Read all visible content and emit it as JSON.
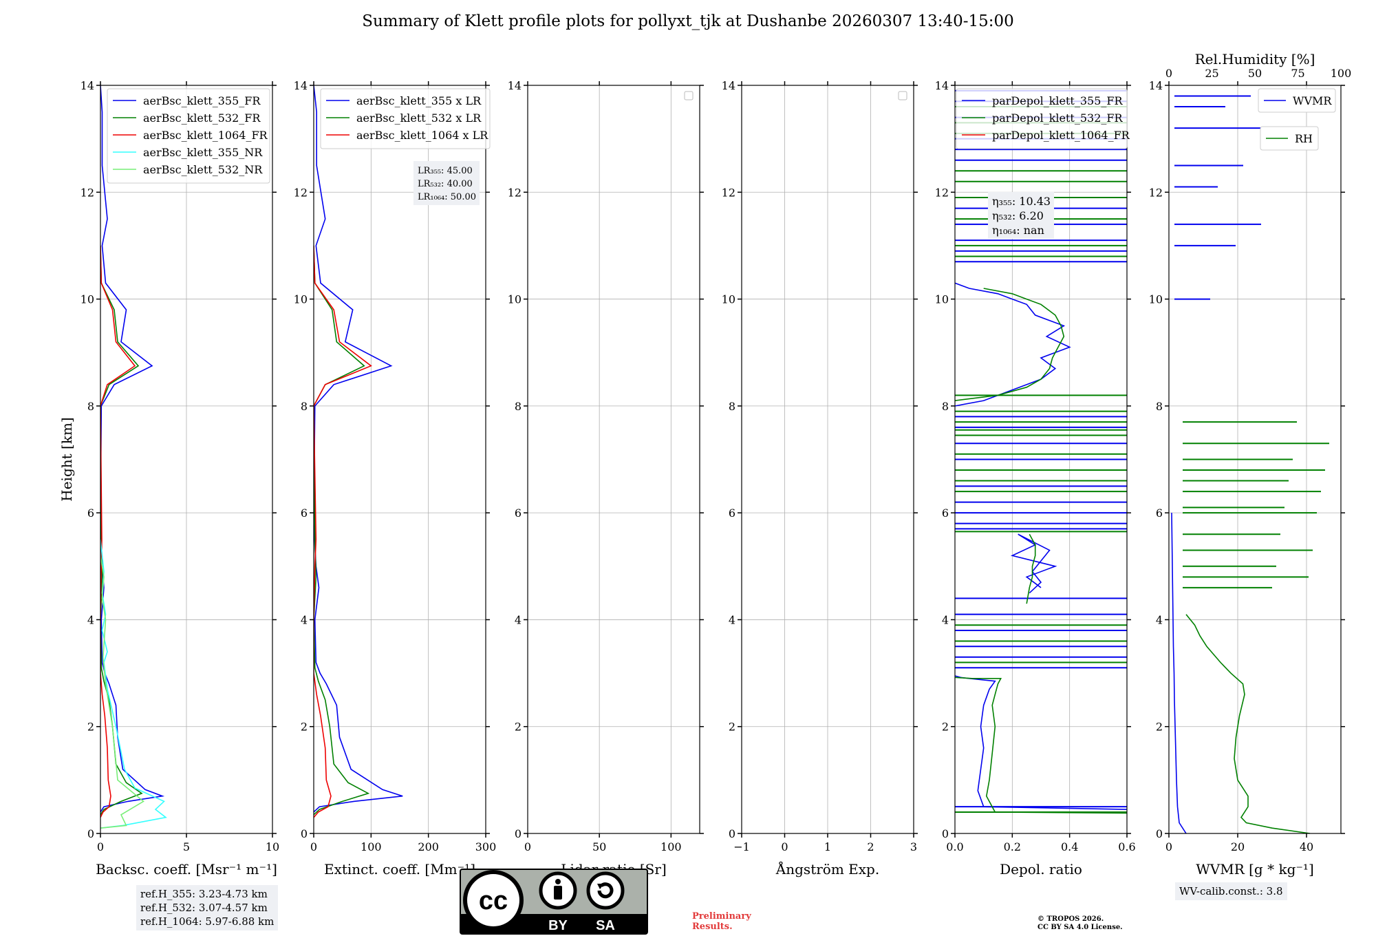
{
  "figure_title": "Summary of Klett profile plots for pollyxt_tjk at Dushanbe 20260307 13:40-15:00",
  "height_label": "Height [km]",
  "colors": {
    "b355": "#0000ee",
    "b532": "#008000",
    "b1064": "#ee0000",
    "c355": "#33ffff",
    "c532": "#77ee77"
  },
  "chart_data": [
    {
      "id": "bsc",
      "type": "line",
      "xlabel": "Backsc. coeff. [Msr$^{-1}$ m$^{-1}$]",
      "xlabel_text": "Backsc. coeff. [Msr⁻¹ m⁻¹]",
      "xlim": [
        0,
        10
      ],
      "ylim": [
        0,
        14
      ],
      "xticks": [
        0,
        5,
        10
      ],
      "xtick_labels": [
        "0",
        "5",
        "10"
      ],
      "yticks": [
        0,
        2,
        4,
        6,
        8,
        10,
        12,
        14
      ],
      "ytick_labels": [
        "0",
        "2",
        "4",
        "6",
        "8",
        "10",
        "12",
        "14"
      ],
      "legend": [
        "aerBsc_klett_355_FR",
        "aerBsc_klett_532_FR",
        "aerBsc_klett_1064_FR",
        "aerBsc_klett_355_NR",
        "aerBsc_klett_532_NR"
      ],
      "series": [
        {
          "name": "aerBsc_klett_355_FR",
          "color": "b355",
          "x": [
            0,
            0.2,
            1.6,
            3.6,
            2.6,
            1.3,
            1.0,
            0.9,
            0.5,
            0.25,
            0.1,
            0.05,
            0.2,
            0.1,
            0,
            0.05,
            0.8,
            3.0,
            1.2,
            1.5,
            0.3,
            0.1,
            0.4,
            0.1,
            0.1,
            0
          ],
          "y": [
            0.4,
            0.5,
            0.6,
            0.7,
            0.82,
            1.2,
            1.8,
            2.4,
            2.8,
            3.0,
            3.2,
            4.0,
            4.6,
            5.0,
            5.8,
            8.0,
            8.4,
            8.75,
            9.2,
            9.8,
            10.3,
            11.0,
            11.5,
            12.5,
            13.5,
            14
          ]
        },
        {
          "name": "aerBsc_klett_532_FR",
          "color": "b532",
          "x": [
            0,
            0.2,
            1.2,
            2.4,
            1.5,
            0.9,
            0.7,
            0.5,
            0.2,
            0.05,
            0,
            0.1,
            0.05,
            0,
            0.5,
            2.2,
            1.0,
            0.8,
            0.05,
            0
          ],
          "y": [
            0.35,
            0.45,
            0.6,
            0.75,
            0.95,
            1.3,
            2.0,
            2.5,
            2.85,
            3.1,
            4.0,
            4.8,
            5.5,
            8.0,
            8.4,
            8.75,
            9.2,
            9.8,
            10.3,
            11.0
          ]
        },
        {
          "name": "aerBsc_klett_1064_FR",
          "color": "b1064",
          "x": [
            0,
            0.15,
            0.5,
            0.6,
            0.45,
            0.4,
            0.25,
            0.1,
            0,
            0,
            0.05,
            0.08,
            0,
            0.4,
            2.0,
            0.9,
            0.7,
            0.05,
            0
          ],
          "y": [
            0.3,
            0.4,
            0.5,
            0.7,
            1.0,
            1.6,
            2.2,
            2.6,
            3.0,
            4.0,
            5.0,
            5.5,
            8.0,
            8.4,
            8.75,
            9.2,
            9.8,
            10.3,
            11.0
          ]
        },
        {
          "name": "aerBsc_klett_355_NR",
          "color": "c355",
          "x": [
            0,
            1.3,
            3.8,
            3.2,
            3.7,
            2.0,
            1.4,
            0.9,
            0.4,
            0.2,
            0.4,
            0.1,
            0.3,
            0.1,
            0.2,
            0
          ],
          "y": [
            0.1,
            0.15,
            0.3,
            0.45,
            0.6,
            0.85,
            1.2,
            2.0,
            2.7,
            3.2,
            3.4,
            3.8,
            4.1,
            4.5,
            4.9,
            5.5
          ]
        },
        {
          "name": "aerBsc_klett_532_NR",
          "color": "c532",
          "x": [
            0,
            1.5,
            1.2,
            2.5,
            1.0,
            0.7,
            0.3,
            0.15,
            0.3,
            0.1,
            0.2,
            0
          ],
          "y": [
            0.1,
            0.15,
            0.35,
            0.6,
            1.0,
            2.0,
            2.8,
            3.3,
            4.0,
            4.4,
            4.8,
            5.2
          ]
        }
      ],
      "legend_loc": "upper right"
    },
    {
      "id": "ext",
      "type": "line",
      "xlabel": "Extinct. coeff. [Mm$^{-1}$]",
      "xlabel_text": "Extinct. coeff. [Mm⁻¹]",
      "xlim": [
        0,
        300
      ],
      "ylim": [
        0,
        14
      ],
      "xticks": [
        0,
        100,
        200,
        300
      ],
      "xtick_labels": [
        "0",
        "100",
        "200",
        "300"
      ],
      "yticks": [
        0,
        2,
        4,
        6,
        8,
        10,
        12,
        14
      ],
      "ytick_labels": [
        "0",
        "2",
        "4",
        "6",
        "8",
        "10",
        "12",
        "14"
      ],
      "legend": [
        "aerBsc_klett_355 x LR",
        "aerBsc_klett_532 x LR",
        "aerBsc_klett_1064 x LR"
      ],
      "series": [
        {
          "name": "aerBsc_klett_355 x LR",
          "color": "b355",
          "x": [
            0,
            10,
            70,
            155,
            120,
            65,
            45,
            40,
            22,
            11,
            4,
            2,
            9,
            4,
            0,
            2,
            35,
            135,
            55,
            68,
            12,
            4,
            20,
            5,
            5,
            0
          ],
          "y": [
            0.4,
            0.5,
            0.6,
            0.7,
            0.82,
            1.2,
            1.8,
            2.4,
            2.8,
            3.0,
            3.2,
            4.0,
            4.6,
            5.0,
            5.8,
            8.0,
            8.4,
            8.75,
            9.2,
            9.8,
            10.3,
            11.0,
            11.5,
            12.5,
            13.5,
            14
          ]
        },
        {
          "name": "aerBsc_klett_532 x LR",
          "color": "b532",
          "x": [
            0,
            10,
            50,
            95,
            60,
            35,
            28,
            20,
            8,
            2,
            0,
            4,
            2,
            0,
            20,
            88,
            40,
            32,
            2,
            0
          ],
          "y": [
            0.35,
            0.45,
            0.6,
            0.75,
            0.95,
            1.3,
            2.0,
            2.5,
            2.85,
            3.1,
            4.0,
            4.8,
            5.5,
            8.0,
            8.4,
            8.75,
            9.2,
            9.8,
            10.3,
            11.0
          ]
        },
        {
          "name": "aerBsc_klett_1064 x LR",
          "color": "b1064",
          "x": [
            0,
            8,
            25,
            30,
            22,
            20,
            12,
            5,
            0,
            0,
            2,
            4,
            0,
            20,
            100,
            45,
            35,
            2,
            0
          ],
          "y": [
            0.3,
            0.4,
            0.5,
            0.7,
            1.0,
            1.6,
            2.2,
            2.6,
            3.0,
            4.0,
            5.0,
            5.5,
            8.0,
            8.4,
            8.75,
            9.2,
            9.8,
            10.3,
            11.0
          ]
        }
      ],
      "lr_box": {
        "lr355": "LR$_{355}$: 45.00",
        "lr532": "LR$_{532}$: 40.00",
        "lr1064": "LR$_{1064}$: 50.00"
      },
      "lr_box_text": {
        "lr355": "LR₃₅₅: 45.00",
        "lr532": "LR₅₃₂: 40.00",
        "lr1064": "LR₁₀₆₄: 50.00"
      }
    },
    {
      "id": "lr",
      "type": "line",
      "xlabel_text": "Lidar ratio [Sr]",
      "xlim": [
        0,
        120
      ],
      "ylim": [
        0,
        14
      ],
      "xticks": [
        0,
        50,
        100
      ],
      "xtick_labels": [
        "0",
        "50",
        "100"
      ],
      "yticks": [
        0,
        2,
        4,
        6,
        8,
        10,
        12,
        14
      ],
      "ytick_labels": [
        "0",
        "2",
        "4",
        "6",
        "8",
        "10",
        "12",
        "14"
      ],
      "series": []
    },
    {
      "id": "ae",
      "type": "line",
      "xlabel_text": "Ångström Exp.",
      "xlim": [
        -1,
        3
      ],
      "ylim": [
        0,
        14
      ],
      "xticks": [
        -1,
        0,
        1,
        2,
        3
      ],
      "xtick_labels": [
        "−1",
        "0",
        "1",
        "2",
        "3"
      ],
      "yticks": [
        0,
        2,
        4,
        6,
        8,
        10,
        12,
        14
      ],
      "ytick_labels": [
        "0",
        "2",
        "4",
        "6",
        "8",
        "10",
        "12",
        "14"
      ],
      "series": []
    },
    {
      "id": "dep",
      "type": "line",
      "xlabel_text": "Depol. ratio",
      "xlim": [
        0,
        0.6
      ],
      "ylim": [
        0,
        14
      ],
      "xticks": [
        0,
        0.2,
        0.4,
        0.6
      ],
      "xtick_labels": [
        "0.0",
        "0.2",
        "0.4",
        "0.6"
      ],
      "yticks": [
        0,
        2,
        4,
        6,
        8,
        10,
        12,
        14
      ],
      "ytick_labels": [
        "0",
        "2",
        "4",
        "6",
        "8",
        "10",
        "12",
        "14"
      ],
      "legend": [
        "parDepol_klett_355_FR",
        "parDepol_klett_532_FR",
        "parDepol_klett_1064_FR"
      ],
      "series": [
        {
          "name": "parDepol_klett_355_FR",
          "color": "b355",
          "x": [
            0.6,
            0.1,
            0.08,
            0.09,
            0.1,
            0.09,
            0.1,
            0.12,
            0.14,
            0.05,
            0.02,
            0.0
          ],
          "y": [
            0.45,
            0.5,
            0.8,
            1.2,
            1.6,
            2.0,
            2.4,
            2.7,
            2.85,
            2.9,
            2.92,
            2.95
          ]
        },
        {
          "name": "parDepol_klett_532_FR",
          "color": "b532",
          "x": [
            0.6,
            0.14,
            0.11,
            0.12,
            0.13,
            0.14,
            0.13,
            0.14,
            0.15,
            0.16,
            0.06,
            0
          ],
          "y": [
            0.38,
            0.4,
            0.7,
            1.0,
            1.5,
            2.0,
            2.4,
            2.6,
            2.8,
            2.9,
            2.9,
            2.92
          ]
        },
        {
          "name": "parDepol_klett_355_FR_mid",
          "color": "b355",
          "x": [
            0.3,
            0.25,
            0.35,
            0.2,
            0.28,
            0.22,
            0.33,
            0.27,
            0.3,
            0.26
          ],
          "y": [
            4.6,
            4.8,
            5.0,
            5.2,
            5.4,
            5.6,
            5.3,
            4.9,
            4.7,
            4.5
          ]
        },
        {
          "name": "parDepol_klett_532_FR_mid",
          "color": "b532",
          "x": [
            0.25,
            0.26,
            0.27,
            0.27,
            0.28,
            0.28,
            0.27,
            0.26
          ],
          "y": [
            4.3,
            4.6,
            4.8,
            5.0,
            5.2,
            5.4,
            5.5,
            5.6
          ]
        },
        {
          "name": "parDepol_klett_355_FR_cloud",
          "color": "b355",
          "x": [
            0.0,
            0.1,
            0.2,
            0.3,
            0.35,
            0.3,
            0.4,
            0.32,
            0.38,
            0.28,
            0.25,
            0.2,
            0.15,
            0.05,
            0
          ],
          "y": [
            8.0,
            8.1,
            8.3,
            8.5,
            8.7,
            8.9,
            9.1,
            9.3,
            9.5,
            9.7,
            9.9,
            10.0,
            10.1,
            10.2,
            10.3
          ]
        },
        {
          "name": "parDepol_klett_532_FR_cloud",
          "color": "b532",
          "x": [
            0.0,
            0.15,
            0.25,
            0.3,
            0.33,
            0.34,
            0.36,
            0.38,
            0.37,
            0.35,
            0.3,
            0.25,
            0.2,
            0.1
          ],
          "y": [
            8.1,
            8.2,
            8.35,
            8.5,
            8.7,
            8.9,
            9.1,
            9.3,
            9.5,
            9.7,
            9.9,
            10.0,
            10.1,
            10.2
          ]
        }
      ],
      "hlines_355": [
        0.5,
        3.1,
        3.3,
        3.5,
        3.8,
        4.1,
        4.4,
        5.7,
        5.8,
        6.0,
        6.2,
        6.5,
        7.0,
        7.3,
        7.6,
        7.8,
        10.7,
        10.9,
        11.1,
        11.4,
        11.7,
        12.6,
        12.8,
        13.0,
        13.4,
        13.7,
        13.9
      ],
      "hlines_532": [
        0.4,
        3.2,
        3.6,
        3.9,
        5.65,
        6.4,
        6.6,
        6.8,
        7.1,
        7.45,
        7.55,
        7.7,
        7.9,
        8.2,
        10.8,
        11.0,
        11.5,
        11.9,
        12.2,
        12.4,
        13.1,
        13.3,
        13.6
      ],
      "eta_box": {
        "e355": "$\\eta_{355}$: 10.43",
        "e532": "$\\eta_{532}$: 6.20",
        "e1064": "$\\eta_{1064}$: nan"
      },
      "eta_box_text": {
        "e355": "η₃₅₅: 10.43",
        "e532": "η₅₃₂: 6.20",
        "e1064": "η₁₀₆₄: nan"
      }
    },
    {
      "id": "wv",
      "type": "line",
      "xlabel_text": "WVMR [g * kg⁻¹]",
      "xlim": [
        0,
        50
      ],
      "ylim": [
        0,
        14
      ],
      "xticks": [
        0,
        20,
        40
      ],
      "xtick_labels": [
        "0",
        "20",
        "40"
      ],
      "top_xlabel": "Rel.Humidity [%]",
      "top_xlim": [
        0,
        100
      ],
      "top_xticks": [
        0,
        25,
        50,
        75,
        100
      ],
      "top_xtick_labels": [
        "0",
        "25",
        "50",
        "75",
        "100"
      ],
      "yticks": [
        0,
        2,
        4,
        6,
        8,
        10,
        12,
        14
      ],
      "ytick_labels": [
        "0",
        "2",
        "4",
        "6",
        "8",
        "10",
        "12",
        "14"
      ],
      "legend": [
        "WVMR",
        "RH"
      ],
      "series": [
        {
          "name": "WVMR",
          "color": "b355",
          "x": [
            5,
            3,
            2.5,
            2.2,
            2.0,
            1.8,
            1.6,
            1.5,
            1.3,
            1.2,
            1.0,
            0.8
          ],
          "y": [
            0,
            0.2,
            0.5,
            1.0,
            1.5,
            2.0,
            2.5,
            3.0,
            3.5,
            4.0,
            5.0,
            6.0
          ]
        },
        {
          "name": "RH",
          "color": "b532",
          "x": [
            82,
            60,
            45,
            42,
            46,
            46,
            40,
            38,
            39,
            41,
            44,
            43,
            36,
            30,
            22,
            18,
            15,
            10
          ],
          "y": [
            0,
            0.1,
            0.2,
            0.3,
            0.5,
            0.7,
            1.0,
            1.4,
            1.8,
            2.2,
            2.6,
            2.8,
            3.0,
            3.2,
            3.5,
            3.7,
            3.9,
            4.1
          ]
        }
      ],
      "hlines_wvmr": [
        10.0,
        11.0,
        11.4,
        12.1,
        12.5,
        13.2,
        13.6,
        13.8
      ],
      "hlines_rh": [
        4.6,
        4.8,
        5.0,
        5.3,
        5.6,
        6.0,
        6.1,
        6.4,
        6.6,
        6.8,
        7.0,
        7.3,
        7.7
      ]
    }
  ],
  "ref_box": {
    "r355": "ref.H_355: 3.23-4.73 km",
    "r532": "ref.H_532: 3.07-4.57 km",
    "r1064": "ref.H_1064: 5.97-6.88 km"
  },
  "wv_calib": "WV-calib.const.: 3.8",
  "preliminary": {
    "l1": "Preliminary",
    "l2": "Results."
  },
  "license": {
    "l1": "© TROPOS 2026.",
    "l2": "CC BY SA 4.0 License."
  },
  "cc_badge": {
    "by": "BY",
    "sa": "SA",
    "cc": "cc"
  }
}
